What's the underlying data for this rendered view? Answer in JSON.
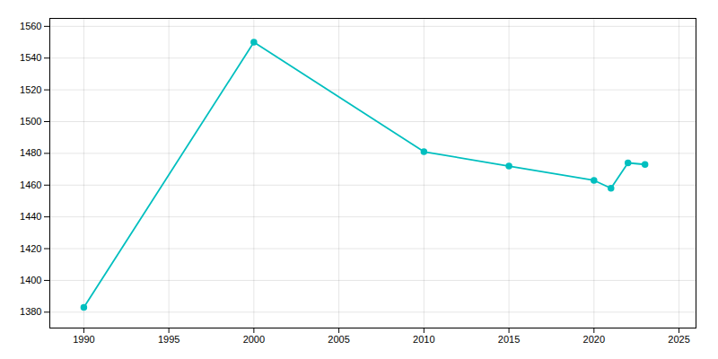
{
  "chart_data": {
    "type": "line",
    "x": [
      1990,
      2000,
      2010,
      2015,
      2020,
      2021,
      2022,
      2023
    ],
    "values": [
      1383,
      1550,
      1481,
      1472,
      1463,
      1458,
      1474,
      1473
    ],
    "color": "#00BFBF",
    "marker": "circle",
    "xlim": [
      1988,
      2026
    ],
    "ylim": [
      1370,
      1565
    ],
    "xticks": [
      1990,
      1995,
      2000,
      2005,
      2010,
      2015,
      2020,
      2025
    ],
    "yticks": [
      1380,
      1400,
      1420,
      1440,
      1460,
      1480,
      1500,
      1520,
      1540,
      1560
    ],
    "grid": true
  }
}
